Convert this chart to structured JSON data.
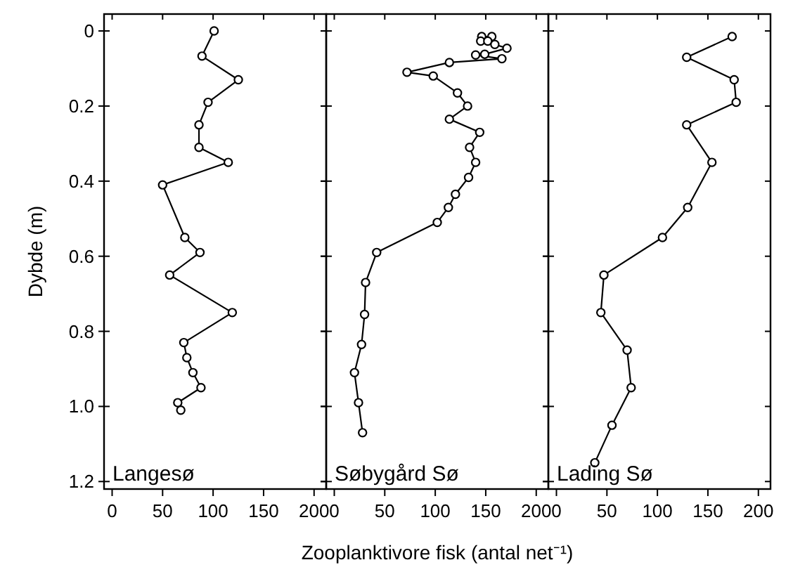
{
  "chart_data": [
    {
      "type": "line",
      "ylabel": "Dybde (m)",
      "xlim": [
        -8,
        212
      ],
      "xticks": [
        0,
        50,
        100,
        150,
        200
      ],
      "ylim": [
        1.22,
        -0.045
      ],
      "yticks": [
        0,
        0.2,
        0.4,
        0.6,
        0.8,
        {
          "value": 1.0,
          "label": "1.0"
        },
        1.2
      ],
      "marker": "circle",
      "annotations": [
        "Langesø"
      ],
      "series": [
        {
          "color": "#000000",
          "x": [
            101,
            89,
            125,
            95,
            86,
            86,
            115,
            50,
            72,
            87,
            57,
            119,
            71,
            74,
            80,
            88,
            65,
            68
          ],
          "values": [
            0.0,
            0.067,
            0.13,
            0.19,
            0.25,
            0.31,
            0.35,
            0.41,
            0.55,
            0.59,
            0.65,
            0.75,
            0.83,
            0.87,
            0.91,
            0.95,
            0.99,
            1.01
          ]
        }
      ]
    },
    {
      "type": "line",
      "xlabel": "Zooplanktivore fisk (antal net⁻¹)",
      "xlim": [
        -8,
        212
      ],
      "xticks": [
        0,
        50,
        100,
        150,
        200
      ],
      "ylim": [
        1.22,
        -0.045
      ],
      "yticks": [
        0,
        0.2,
        0.4,
        0.6,
        0.8,
        1.0,
        1.2
      ],
      "tick_labels": "x",
      "marker": "circle",
      "annotations": [
        "Søbygård Sø"
      ],
      "series": [
        {
          "color": "#000000",
          "x": [
            146,
            156,
            145,
            152,
            159,
            171,
            149,
            140,
            166,
            114,
            72,
            98,
            122,
            132,
            114,
            144,
            134,
            140,
            133,
            120,
            113,
            102,
            42,
            31,
            30,
            27,
            20,
            24,
            28
          ],
          "values": [
            0.015,
            0.015,
            0.027,
            0.027,
            0.036,
            0.046,
            0.062,
            0.064,
            0.074,
            0.084,
            0.11,
            0.12,
            0.165,
            0.2,
            0.235,
            0.27,
            0.31,
            0.35,
            0.39,
            0.435,
            0.47,
            0.51,
            0.59,
            0.67,
            0.755,
            0.835,
            0.91,
            0.99,
            1.07
          ]
        }
      ]
    },
    {
      "type": "line",
      "xlim": [
        -8,
        212
      ],
      "xticks": [
        0,
        50,
        100,
        150,
        200
      ],
      "ylim": [
        1.22,
        -0.045
      ],
      "yticks": [
        0,
        0.2,
        0.4,
        0.6,
        0.8,
        1.0,
        1.2
      ],
      "tick_labels": "x",
      "marker": "circle",
      "annotations": [
        "Lading Sø"
      ],
      "series": [
        {
          "color": "#000000",
          "x": [
            174,
            129,
            176,
            178,
            129,
            154,
            130,
            105,
            47,
            44,
            70,
            74,
            55,
            38
          ],
          "values": [
            0.015,
            0.07,
            0.13,
            0.19,
            0.25,
            0.35,
            0.47,
            0.55,
            0.65,
            0.75,
            0.85,
            0.95,
            1.05,
            1.15
          ]
        }
      ]
    }
  ]
}
